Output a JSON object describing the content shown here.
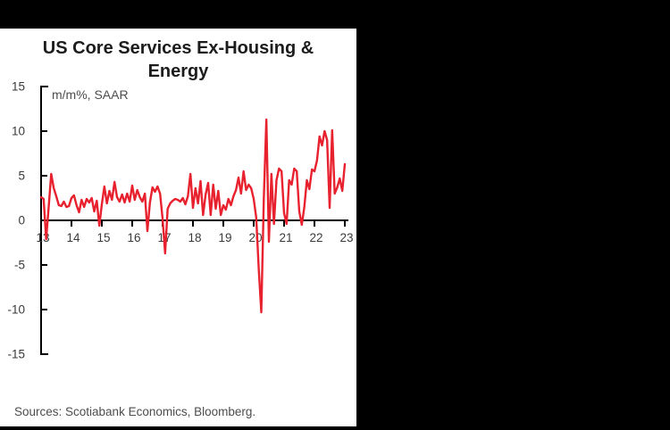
{
  "window": {
    "background_color": "#000000",
    "panel_color": "#ffffff"
  },
  "chart_data": {
    "type": "line",
    "title": "US Core Services Ex-Housing & Energy",
    "title_lines": [
      "US Core Services Ex-Housing &",
      "Energy"
    ],
    "units_label": "m/m%, SAAR",
    "source": "Sources: Scotiabank Economics, Bloomberg.",
    "grid": false,
    "legend": "none",
    "axis_color": "#000000",
    "tick_label_color": "#3a3a3a",
    "ylim": [
      -15,
      15
    ],
    "y_ticks": [
      15,
      10,
      5,
      0,
      -5,
      -10,
      -15
    ],
    "x_ticks": [
      "13",
      "14",
      "15",
      "16",
      "17",
      "18",
      "19",
      "20",
      "21",
      "22",
      "23"
    ],
    "x_axis_note": "years 2013-2023, monthly data",
    "series": [
      {
        "name": "US core services ex-housing & energy, m/m% SAAR",
        "color": "#e8212e",
        "start_year": 2013,
        "start_month": 1,
        "frequency": "monthly",
        "values": [
          2.6,
          2.4,
          -2.1,
          1.5,
          5.2,
          3.6,
          2.7,
          1.7,
          1.6,
          2.1,
          1.5,
          1.6,
          2.5,
          2.8,
          1.7,
          0.9,
          2.3,
          1.5,
          2.4,
          2.0,
          2.5,
          1.0,
          2.2,
          -0.6,
          1.8,
          3.8,
          1.9,
          3.3,
          2.3,
          4.3,
          2.6,
          2.1,
          2.9,
          2.0,
          3.0,
          2.1,
          3.9,
          2.3,
          3.4,
          2.6,
          2.1,
          3.0,
          -1.2,
          2.0,
          3.7,
          3.2,
          3.8,
          3.0,
          0.2,
          -3.7,
          1.3,
          1.9,
          2.2,
          2.4,
          2.3,
          2.1,
          2.5,
          1.8,
          2.7,
          5.2,
          1.4,
          3.6,
          1.9,
          4.4,
          0.6,
          2.9,
          4.2,
          0.6,
          4.0,
          1.3,
          3.3,
          0.6,
          1.7,
          1.2,
          2.4,
          1.7,
          2.7,
          3.4,
          4.8,
          3.0,
          5.5,
          3.4,
          4.0,
          3.6,
          2.4,
          0.3,
          -5.5,
          -10.3,
          2.5,
          11.3,
          -2.4,
          5.2,
          -0.4,
          4.5,
          5.8,
          5.5,
          0.8,
          -0.4,
          4.5,
          4.0,
          5.8,
          5.5,
          1.0,
          -0.5,
          1.5,
          4.5,
          3.5,
          5.7,
          5.5,
          6.7,
          9.4,
          8.4,
          10.0,
          9.0,
          1.4,
          10.1,
          3.0,
          3.7,
          4.7,
          3.3,
          6.3
        ]
      }
    ]
  }
}
